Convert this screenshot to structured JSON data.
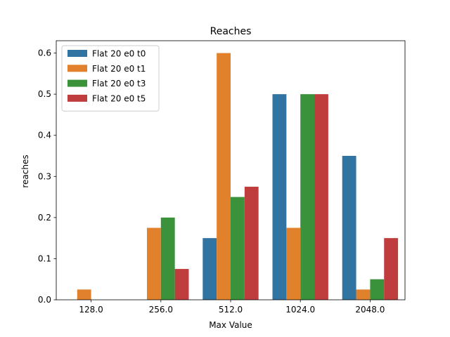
{
  "chart_data": {
    "type": "bar",
    "title": "Reaches",
    "xlabel": "Max Value",
    "ylabel": "reaches",
    "categories": [
      "128.0",
      "256.0",
      "512.0",
      "1024.0",
      "2048.0"
    ],
    "ylim": [
      0,
      0.63
    ],
    "yticks": [
      "0.0",
      "0.1",
      "0.2",
      "0.3",
      "0.4",
      "0.5",
      "0.6"
    ],
    "grid": false,
    "legend_position": "top-left",
    "series": [
      {
        "name": "Flat 20 e0 t0",
        "color": "#3274a1",
        "values": [
          0,
          0,
          0.15,
          0.5,
          0.35
        ]
      },
      {
        "name": "Flat 20 e0 t1",
        "color": "#e1812c",
        "values": [
          0.025,
          0.175,
          0.6,
          0.175,
          0.025
        ]
      },
      {
        "name": "Flat 20 e0 t3",
        "color": "#3a923a",
        "values": [
          0,
          0.2,
          0.25,
          0.5,
          0.05
        ]
      },
      {
        "name": "Flat 20 e0 t5",
        "color": "#c03d3e",
        "values": [
          0,
          0.075,
          0.275,
          0.5,
          0.15
        ]
      }
    ]
  }
}
